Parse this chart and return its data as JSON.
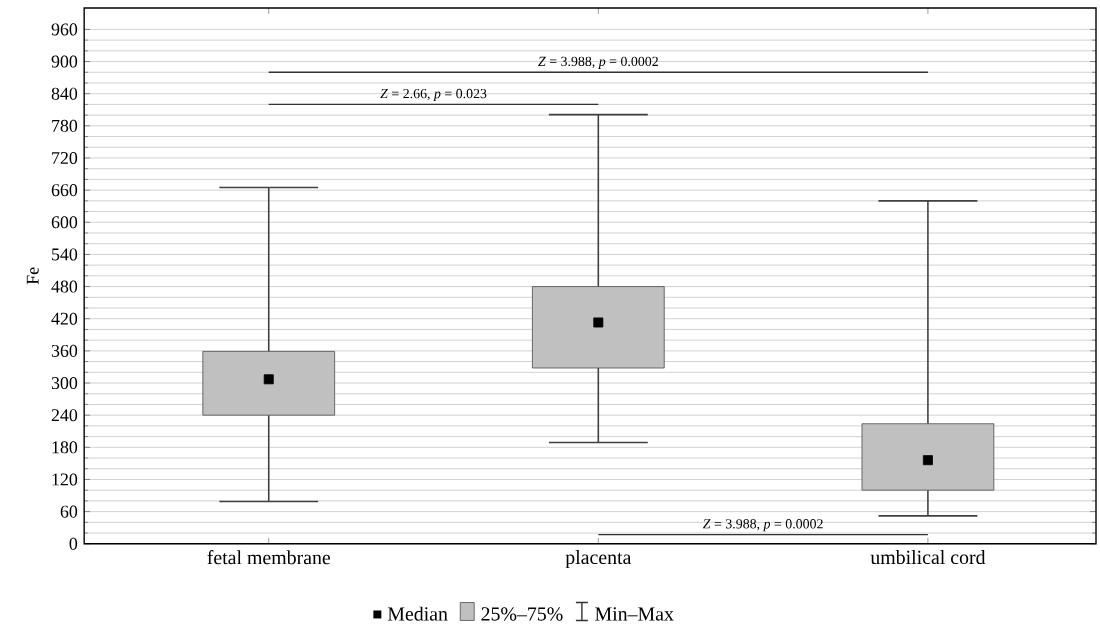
{
  "chart_data": {
    "type": "box",
    "categories": [
      "fetal membrane",
      "placenta",
      "umbilical cord"
    ],
    "ylabel": "Fe",
    "ylim": [
      0,
      1000
    ],
    "yticks": [
      0,
      60,
      120,
      180,
      240,
      300,
      360,
      420,
      480,
      540,
      600,
      660,
      720,
      780,
      840,
      900,
      960
    ],
    "grid": "y",
    "legend": "bottom",
    "series": [
      {
        "name": "25%–75%",
        "type": "box",
        "color": "#c0c0c0",
        "boxes": [
          {
            "low": 79,
            "q1": 240,
            "median": 307,
            "q3": 359,
            "high": 665
          },
          {
            "low": 189,
            "q1": 328,
            "median": 413,
            "q3": 480,
            "high": 801
          },
          {
            "low": 52,
            "q1": 100,
            "median": 156,
            "q3": 224,
            "high": 640
          }
        ]
      }
    ],
    "annotations": [
      "*Z* = 3.988, *p* = 0.0002",
      "*Z* = 2.66, *p* = 0.023",
      "*Z* = 3.988, *p* = 0.0002",
      "Median",
      "Min–Max"
    ]
  }
}
